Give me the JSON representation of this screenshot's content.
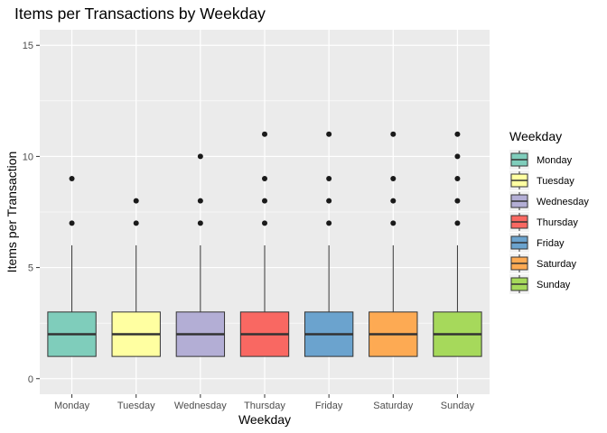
{
  "chart_data": {
    "type": "boxplot",
    "title": "Items per Transactions by Weekday",
    "xlabel": "Weekday",
    "ylabel": "Items per Transaction",
    "ylim": [
      -0.7,
      15.7
    ],
    "yticks": [
      0,
      5,
      10,
      15
    ],
    "grid": true,
    "legend": {
      "title": "Weekday",
      "placement": "right"
    },
    "categories": [
      "Monday",
      "Tuesday",
      "Wednesday",
      "Thursday",
      "Friday",
      "Saturday",
      "Sunday"
    ],
    "series": [
      {
        "name": "Monday",
        "color": "#7fcdbb",
        "q1": 1,
        "median": 2,
        "q3": 3,
        "whisker_low": 1,
        "whisker_high": 6,
        "outliers": [
          7,
          9
        ]
      },
      {
        "name": "Tuesday",
        "color": "#ffffa1",
        "q1": 1,
        "median": 2,
        "q3": 3,
        "whisker_low": 1,
        "whisker_high": 6,
        "outliers": [
          7,
          8
        ]
      },
      {
        "name": "Wednesday",
        "color": "#b3aed5",
        "q1": 1,
        "median": 2,
        "q3": 3,
        "whisker_low": 1,
        "whisker_high": 6,
        "outliers": [
          7,
          8,
          10
        ]
      },
      {
        "name": "Thursday",
        "color": "#f96862",
        "q1": 1,
        "median": 2,
        "q3": 3,
        "whisker_low": 1,
        "whisker_high": 6,
        "outliers": [
          7,
          8,
          9,
          11
        ]
      },
      {
        "name": "Friday",
        "color": "#6ba3ce",
        "q1": 1,
        "median": 2,
        "q3": 3,
        "whisker_low": 1,
        "whisker_high": 6,
        "outliers": [
          7,
          8,
          9,
          11
        ]
      },
      {
        "name": "Saturday",
        "color": "#fdaa53",
        "q1": 1,
        "median": 2,
        "q3": 3,
        "whisker_low": 1,
        "whisker_high": 6,
        "outliers": [
          7,
          8,
          9,
          11
        ]
      },
      {
        "name": "Sunday",
        "color": "#a6d95b",
        "q1": 1,
        "median": 2,
        "q3": 3,
        "whisker_low": 1,
        "whisker_high": 6,
        "outliers": [
          7,
          8,
          9,
          10,
          11
        ]
      }
    ]
  }
}
